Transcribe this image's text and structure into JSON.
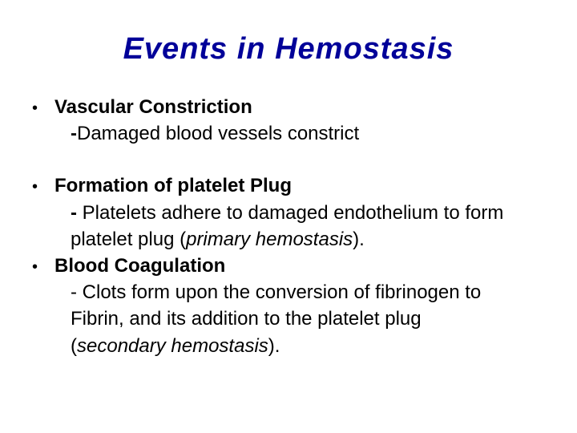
{
  "title": "Events  in  Hemostasis",
  "colors": {
    "title_color": "#000099",
    "text_color": "#000000",
    "background": "#ffffff"
  },
  "typography": {
    "title_fontsize": 38,
    "body_fontsize": 24,
    "font_family": "Arial"
  },
  "items": [
    {
      "heading": "Vascular  Constriction",
      "sub1": "-Damaged blood vessels constrict"
    },
    {
      "heading": "Formation of platelet Plug",
      "sub1": "- Platelets adhere to damaged endothelium to form",
      "sub2_plain": "platelet plug (",
      "sub2_italic": "primary hemostasis",
      "sub2_tail": ")."
    },
    {
      "heading": "Blood  Coagulation",
      "sub1": " - Clots form upon the conversion of fibrinogen to",
      "sub2": "Fibrin, and its addition to the platelet plug",
      "sub3_plain": "(",
      "sub3_italic": "secondary hemostasis",
      "sub3_tail": ")."
    }
  ]
}
